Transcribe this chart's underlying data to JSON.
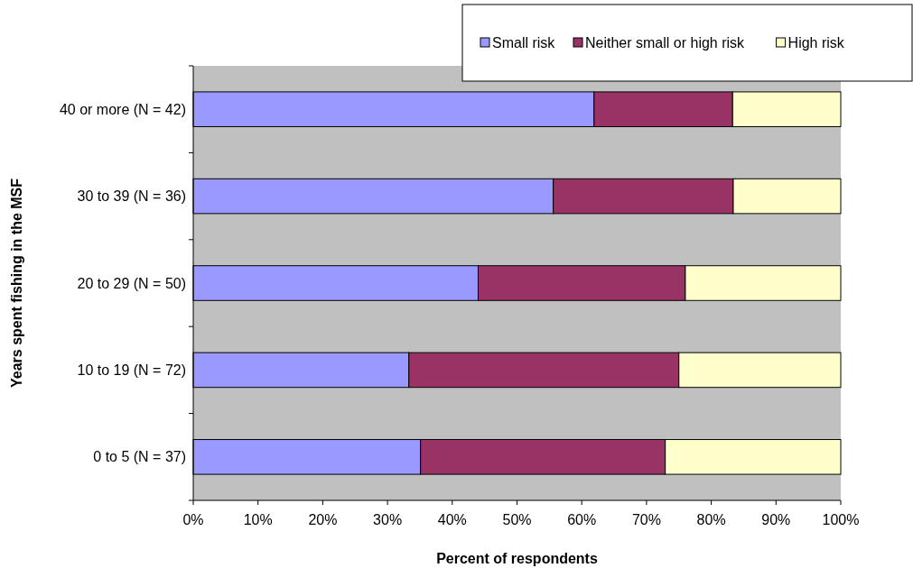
{
  "chart_data": {
    "type": "bar",
    "orientation": "horizontal",
    "stacked": true,
    "xlabel": "Percent of respondents",
    "ylabel": "Years spent fishing in the MSF",
    "categories": [
      "40 or more (N = 42)",
      "30 to 39 (N = 36)",
      "20 to 29 (N = 50)",
      "10 to 19 (N = 72)",
      "0 to 5 (N = 37)"
    ],
    "series": [
      {
        "name": "Small risk",
        "color": "#9999ff",
        "values": [
          61.9,
          55.6,
          44.0,
          33.3,
          35.1
        ]
      },
      {
        "name": "Neither small or high risk",
        "color": "#993366",
        "values": [
          21.4,
          27.8,
          32.0,
          41.7,
          37.8
        ]
      },
      {
        "name": "High risk",
        "color": "#ffffcc",
        "values": [
          16.7,
          16.6,
          24.0,
          25.0,
          27.1
        ]
      }
    ],
    "xlim": [
      0,
      100
    ],
    "xticks": [
      {
        "value": 0,
        "label": "0%"
      },
      {
        "value": 10,
        "label": "10%"
      },
      {
        "value": 20,
        "label": "20%"
      },
      {
        "value": 30,
        "label": "30%"
      },
      {
        "value": 40,
        "label": "40%"
      },
      {
        "value": 50,
        "label": "50%"
      },
      {
        "value": 60,
        "label": "60%"
      },
      {
        "value": 70,
        "label": "70%"
      },
      {
        "value": 80,
        "label": "80%"
      },
      {
        "value": 90,
        "label": "90%"
      },
      {
        "value": 100,
        "label": "100%"
      }
    ],
    "legend": "top right",
    "grid": false
  }
}
